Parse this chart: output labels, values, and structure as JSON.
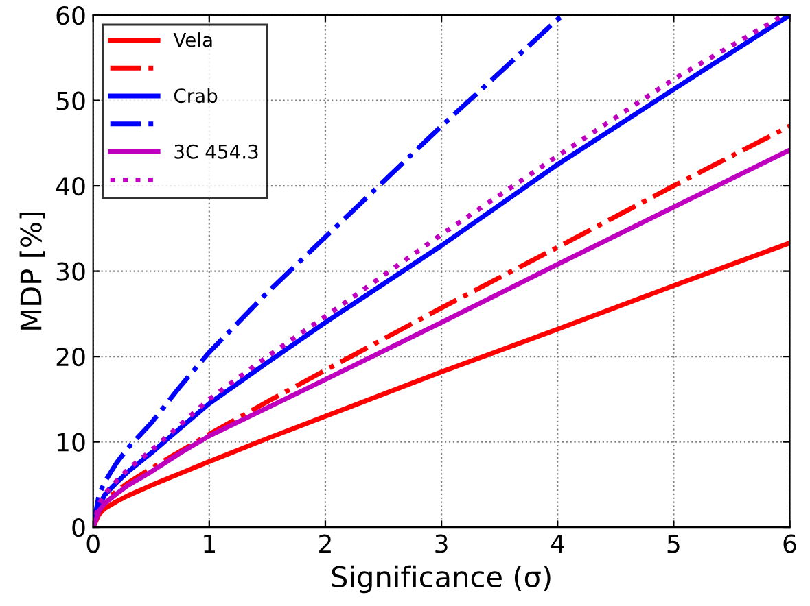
{
  "chart_data": {
    "type": "line",
    "xlabel": "Significance (σ)",
    "ylabel": "MDP [%]",
    "xlim": [
      0,
      6
    ],
    "ylim": [
      0,
      60
    ],
    "xticks": [
      0,
      1,
      2,
      3,
      4,
      5,
      6
    ],
    "yticks": [
      0,
      10,
      20,
      30,
      40,
      50,
      60
    ],
    "grid": true,
    "legend": "top left",
    "marker": "none",
    "series": [
      {
        "name": "Vela",
        "color": "#ff0000",
        "line_style": "solid",
        "x": [
          0,
          0.05,
          0.1,
          0.2,
          0.3,
          0.5,
          0.75,
          1,
          1.5,
          2,
          3,
          4,
          5,
          6
        ],
        "values": [
          0,
          1.5,
          2.2,
          3.0,
          3.7,
          4.9,
          6.3,
          7.7,
          10.4,
          13.0,
          18.2,
          23.2,
          28.3,
          33.3
        ]
      },
      {
        "color": "#ff0000",
        "line_style": "dashdot",
        "x": [
          0,
          0.05,
          0.1,
          0.2,
          0.3,
          0.5,
          0.75,
          1,
          1.5,
          2,
          3,
          4,
          5,
          6
        ],
        "values": [
          0,
          2.1,
          3.1,
          4.2,
          5.2,
          6.9,
          8.9,
          10.9,
          14.7,
          18.4,
          25.7,
          32.8,
          40.0,
          47.0
        ]
      },
      {
        "name": "Crab",
        "color": "#0000ff",
        "line_style": "solid",
        "x": [
          0,
          0.05,
          0.1,
          0.2,
          0.3,
          0.5,
          0.75,
          1,
          1.5,
          2,
          3,
          4,
          5,
          6
        ],
        "values": [
          0,
          2.5,
          3.8,
          5.2,
          6.5,
          8.7,
          11.6,
          14.5,
          19.3,
          24.0,
          33.0,
          42.5,
          51.3,
          60.0
        ]
      },
      {
        "color": "#0000ff",
        "line_style": "dashdot",
        "x": [
          0,
          0.05,
          0.1,
          0.2,
          0.3,
          0.5,
          0.75,
          1,
          1.5,
          2,
          3,
          4,
          4.05
        ],
        "values": [
          0,
          3.8,
          5.3,
          7.5,
          9.3,
          12.2,
          16.5,
          20.5,
          27.5,
          34.0,
          47.0,
          59.5,
          60.0
        ]
      },
      {
        "name": "3C 454.3",
        "color": "#bf00bf",
        "line_style": "solid",
        "x": [
          0,
          0.05,
          0.1,
          0.2,
          0.3,
          0.5,
          0.75,
          1,
          1.5,
          2,
          3,
          4,
          5,
          6
        ],
        "values": [
          0,
          1.9,
          2.8,
          3.9,
          4.9,
          6.5,
          8.7,
          10.7,
          14.0,
          17.3,
          24.0,
          30.8,
          37.5,
          44.2
        ]
      },
      {
        "color": "#bf00bf",
        "line_style": "dotted",
        "x": [
          0,
          0.05,
          0.1,
          0.2,
          0.3,
          0.5,
          0.75,
          1,
          1.5,
          2,
          3,
          4,
          5,
          5.95
        ],
        "values": [
          0,
          2.7,
          3.9,
          5.4,
          6.8,
          9.0,
          12.0,
          15.0,
          20.0,
          24.7,
          34.3,
          43.5,
          52.5,
          60.0
        ]
      }
    ]
  }
}
